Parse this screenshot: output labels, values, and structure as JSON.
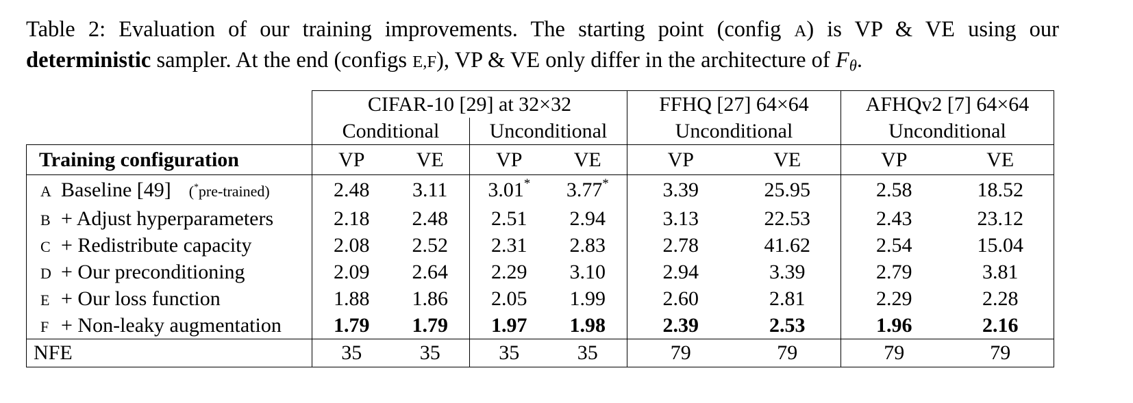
{
  "caption": {
    "segments": [
      {
        "text": "Table 2: Evaluation of our training improvements. The starting point (config ",
        "style": "normal"
      },
      {
        "text": "A",
        "style": "smallcaps"
      },
      {
        "text": ") is VP & VE using our ",
        "style": "normal"
      },
      {
        "text": "deterministic",
        "style": "bold"
      },
      {
        "text": " sampler. At the end (configs ",
        "style": "normal"
      },
      {
        "text": "E,F",
        "style": "smallcaps"
      },
      {
        "text": "), VP & VE only differ in the architecture of ",
        "style": "normal"
      },
      {
        "text": "F",
        "style": "math"
      },
      {
        "text": "θ",
        "style": "sub"
      },
      {
        "text": ".",
        "style": "normal"
      }
    ]
  },
  "table": {
    "groups": [
      {
        "label": "CIFAR-10 [29] at 32×32",
        "span": 4
      },
      {
        "label": "FFHQ [27] 64×64",
        "span": 2
      },
      {
        "label": "AFHQv2 [7] 64×64",
        "span": 2
      }
    ],
    "subgroups": [
      {
        "label": "Conditional",
        "span": 2
      },
      {
        "label": "Unconditional",
        "span": 2
      },
      {
        "label": "Unconditional",
        "span": 2
      },
      {
        "label": "Unconditional",
        "span": 2
      }
    ],
    "header": "Training configuration",
    "columns": [
      "VP",
      "VE",
      "VP",
      "VE",
      "VP",
      "VE",
      "VP",
      "VE"
    ],
    "rows": [
      {
        "config": "A",
        "label": "Baseline [49]",
        "note": {
          "prefix": "(",
          "mark": "*",
          "text": "pre-trained)"
        },
        "values": [
          "2.48",
          "3.11",
          {
            "value": "3.01",
            "mark": "*"
          },
          {
            "value": "3.77",
            "mark": "*"
          },
          "3.39",
          "25.95",
          "2.58",
          "18.52"
        ]
      },
      {
        "config": "B",
        "label": "+ Adjust hyperparameters",
        "values": [
          "2.18",
          "2.48",
          "2.51",
          "2.94",
          "3.13",
          "22.53",
          "2.43",
          "23.12"
        ]
      },
      {
        "config": "C",
        "label": "+ Redistribute capacity",
        "values": [
          "2.08",
          "2.52",
          "2.31",
          "2.83",
          "2.78",
          "41.62",
          "2.54",
          "15.04"
        ]
      },
      {
        "config": "D",
        "label": "+ Our preconditioning",
        "values": [
          "2.09",
          "2.64",
          "2.29",
          "3.10",
          "2.94",
          "3.39",
          "2.79",
          "3.81"
        ]
      },
      {
        "config": "E",
        "label": "+ Our loss function",
        "values": [
          "1.88",
          "1.86",
          "2.05",
          "1.99",
          "2.60",
          "2.81",
          "2.29",
          "2.28"
        ]
      },
      {
        "config": "F",
        "label": "+ Non-leaky augmentation",
        "bold": true,
        "values": [
          "1.79",
          "1.79",
          "1.97",
          "1.98",
          "2.39",
          "2.53",
          "1.96",
          "2.16"
        ]
      }
    ],
    "footer": {
      "label": "NFE",
      "values": [
        "35",
        "35",
        "35",
        "35",
        "79",
        "79",
        "79",
        "79"
      ]
    }
  }
}
